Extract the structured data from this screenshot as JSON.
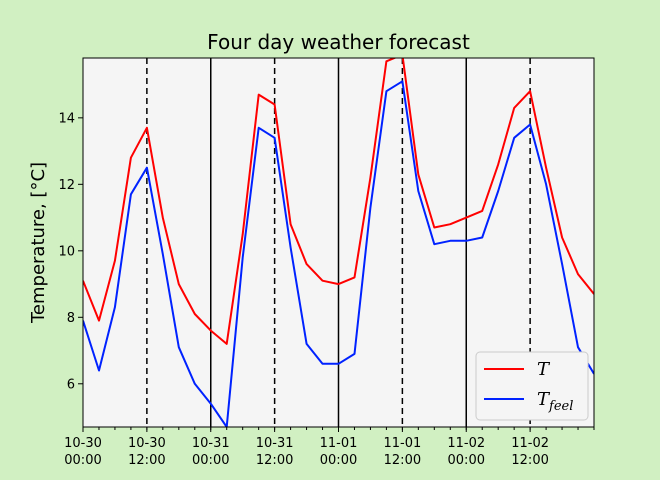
{
  "chart_data": {
    "type": "line",
    "title": "Four day weather forecast",
    "xlabel": "",
    "ylabel": "Temperature, [°C]",
    "x_start": "2024-10-30 00:00",
    "x_step_hours": 3,
    "xlim": [
      "10-30 00:00",
      "11-02 21:00"
    ],
    "ylim": [
      4.7,
      15.8
    ],
    "x_ticks": [
      {
        "date": "10-30",
        "time": "00:00"
      },
      {
        "date": "10-30",
        "time": "12:00"
      },
      {
        "date": "10-31",
        "time": "00:00"
      },
      {
        "date": "10-31",
        "time": "12:00"
      },
      {
        "date": "11-01",
        "time": "00:00"
      },
      {
        "date": "11-01",
        "time": "12:00"
      },
      {
        "date": "11-02",
        "time": "00:00"
      },
      {
        "date": "11-02",
        "time": "12:00"
      }
    ],
    "y_ticks": [
      "6",
      "8",
      "10",
      "12",
      "14"
    ],
    "vertical_lines": {
      "midnight": {
        "style": "solid",
        "color": "#000000",
        "at": [
          "10-31 00:00",
          "11-01 00:00",
          "11-02 00:00"
        ]
      },
      "noon": {
        "style": "dashed",
        "color": "#000000",
        "at": [
          "10-30 12:00",
          "10-31 12:00",
          "11-01 12:00",
          "11-02 12:00"
        ]
      }
    },
    "series": [
      {
        "name": "T",
        "color": "#ff0000",
        "values": [
          9.1,
          7.9,
          9.7,
          12.8,
          13.7,
          11.0,
          9.0,
          8.1,
          7.6,
          7.2,
          10.5,
          14.7,
          14.4,
          10.8,
          9.6,
          9.1,
          9.0,
          9.2,
          12.2,
          15.7,
          15.9,
          12.3,
          10.7,
          10.8,
          11.0,
          11.2,
          12.6,
          14.3,
          14.8,
          12.5,
          10.4,
          9.3,
          8.7
        ]
      },
      {
        "name": "T",
        "subscript": "feel",
        "color": "#0022ff",
        "values": [
          7.9,
          6.4,
          8.3,
          11.7,
          12.5,
          9.9,
          7.1,
          6.0,
          5.4,
          4.7,
          9.8,
          13.7,
          13.4,
          10.1,
          7.2,
          6.6,
          6.6,
          6.9,
          11.3,
          14.8,
          15.1,
          11.8,
          10.2,
          10.3,
          10.3,
          10.4,
          11.8,
          13.4,
          13.8,
          12.0,
          9.6,
          7.1,
          6.3
        ]
      }
    ],
    "legend": {
      "position": "lower-right"
    },
    "grid": false
  }
}
